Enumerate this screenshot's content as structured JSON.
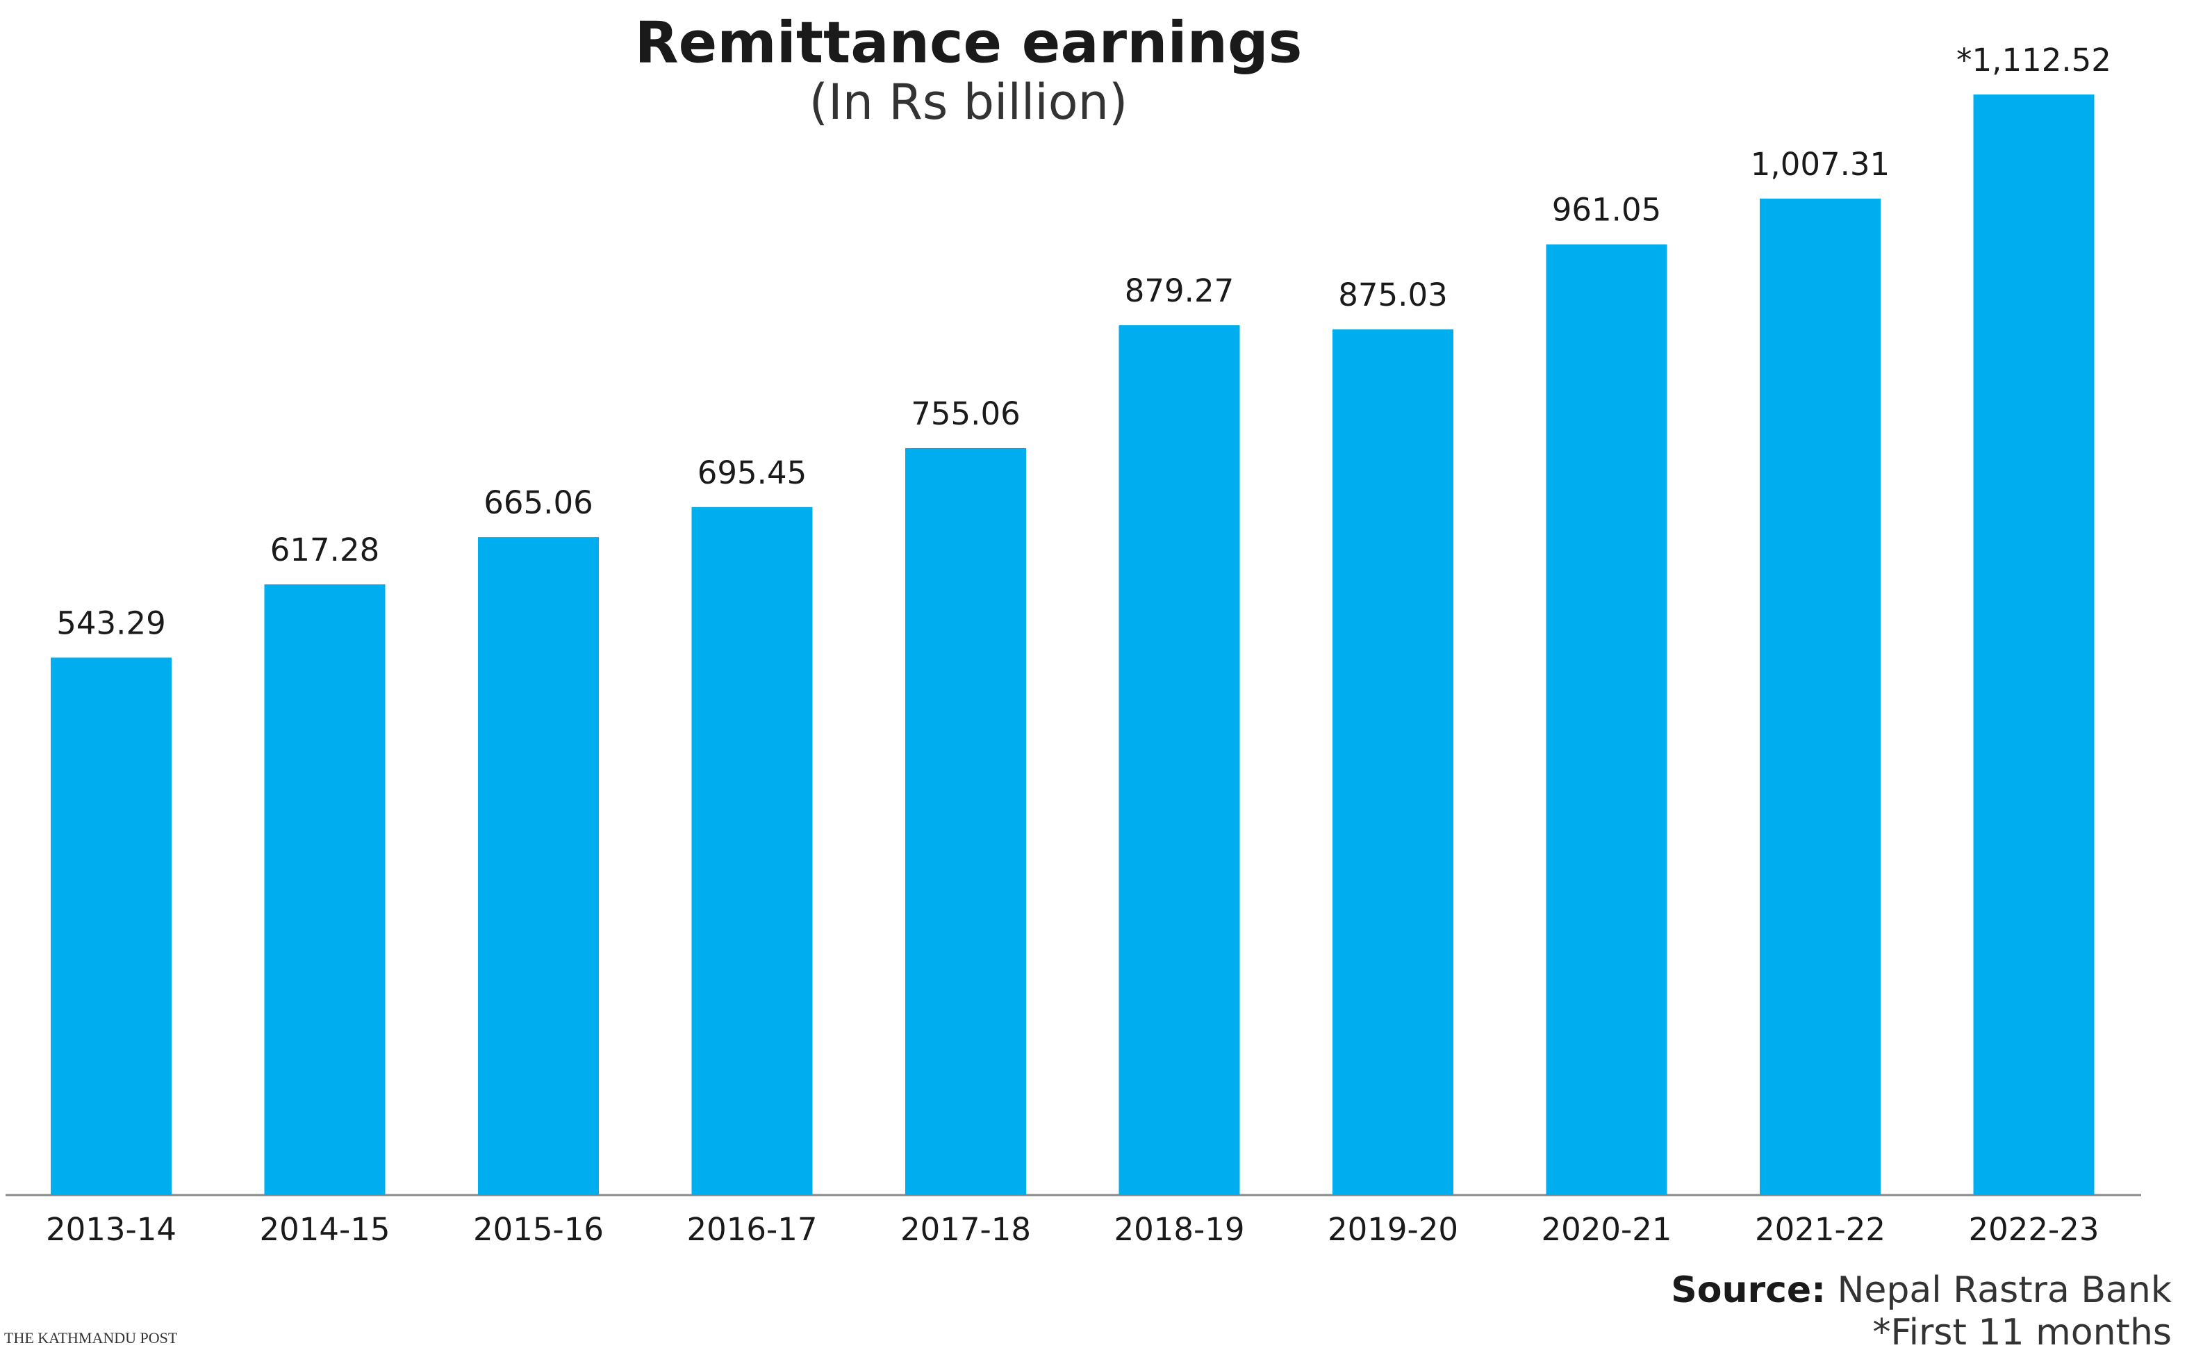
{
  "chart_data": {
    "type": "bar",
    "title": "Remittance earnings",
    "subtitle": "(In Rs billion)",
    "categories": [
      "2013-14",
      "2014-15",
      "2015-16",
      "2016-17",
      "2017-18",
      "2018-19",
      "2019-20",
      "2020-21",
      "2021-22",
      "2022-23"
    ],
    "values": [
      543.29,
      617.28,
      665.06,
      695.45,
      755.06,
      879.27,
      875.03,
      961.05,
      1007.31,
      1112.52
    ],
    "value_labels": [
      "543.29",
      "617.28",
      "665.06",
      "695.45",
      "755.06",
      "879.27",
      "875.03",
      "961.05",
      "1,007.31",
      "*1,112.52"
    ],
    "color": "#00aeef",
    "source_label": "Source:",
    "source": "Nepal Rastra Bank",
    "note": "*First 11 months",
    "logo": "THE KATHMANDU POST"
  }
}
